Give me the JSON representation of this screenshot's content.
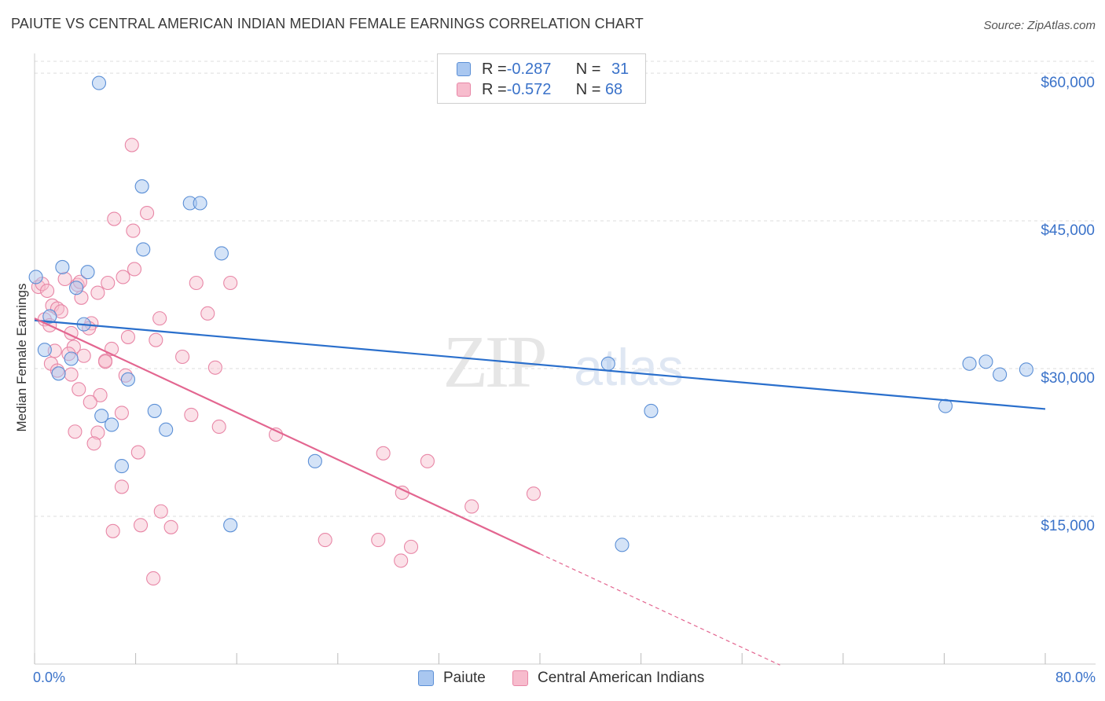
{
  "title": "PAIUTE VS CENTRAL AMERICAN INDIAN MEDIAN FEMALE EARNINGS CORRELATION CHART",
  "source": "Source: ZipAtlas.com",
  "watermark": {
    "zip": "ZIP",
    "atlas": "atlas"
  },
  "legend": {
    "paiute": {
      "r_label": "R = ",
      "r_value": "-0.287",
      "n_label": "N = ",
      "n_value": "31"
    },
    "central": {
      "r_label": "R = ",
      "r_value": "-0.572",
      "n_label": "N = ",
      "n_value": "68"
    }
  },
  "bottom_legend": {
    "paiute": "Paiute",
    "central": "Central American Indians"
  },
  "x_axis": {
    "min_label": "0.0%",
    "max_label": "80.0%"
  },
  "y_axis": {
    "title": "Median Female Earnings"
  },
  "colors": {
    "paiute_fill": "#a9c7f0",
    "paiute_stroke": "#5b8fd6",
    "paiute_line": "#2a6fcc",
    "central_fill": "#f7bccd",
    "central_stroke": "#e886a6",
    "central_line": "#e36690",
    "axis_text": "#3a72c9",
    "grid": "#dddddd"
  },
  "chart_data": {
    "type": "scatter",
    "title": "PAIUTE VS CENTRAL AMERICAN INDIAN MEDIAN FEMALE EARNINGS CORRELATION CHART",
    "xlabel": "",
    "ylabel": "Median Female Earnings",
    "xlim": [
      0,
      80
    ],
    "ylim": [
      0,
      62000
    ],
    "y_ticks": [
      {
        "value": 15000,
        "label": "$15,000"
      },
      {
        "value": 30000,
        "label": "$30,000"
      },
      {
        "value": 45000,
        "label": "$45,000"
      },
      {
        "value": 60000,
        "label": "$60,000"
      }
    ],
    "x_ticks": [
      0,
      8,
      16,
      24,
      32,
      40,
      48,
      56,
      64,
      72,
      80
    ],
    "series": [
      {
        "name": "Paiute",
        "points": [
          [
            5.1,
            59000
          ],
          [
            8.5,
            48500
          ],
          [
            12.3,
            46800
          ],
          [
            13.1,
            46800
          ],
          [
            8.6,
            42100
          ],
          [
            14.8,
            41700
          ],
          [
            2.2,
            40300
          ],
          [
            4.2,
            39800
          ],
          [
            0.1,
            39300
          ],
          [
            3.3,
            38200
          ],
          [
            1.2,
            35300
          ],
          [
            3.9,
            34500
          ],
          [
            0.8,
            31900
          ],
          [
            2.9,
            31000
          ],
          [
            1.9,
            29500
          ],
          [
            7.4,
            28900
          ],
          [
            9.5,
            25700
          ],
          [
            5.3,
            25200
          ],
          [
            6.1,
            24300
          ],
          [
            10.4,
            23800
          ],
          [
            6.9,
            20100
          ],
          [
            22.2,
            20600
          ],
          [
            15.5,
            14100
          ],
          [
            45.4,
            30500
          ],
          [
            48.8,
            25700
          ],
          [
            74.0,
            30500
          ],
          [
            75.3,
            30700
          ],
          [
            76.4,
            29400
          ],
          [
            78.5,
            29900
          ],
          [
            72.1,
            26200
          ],
          [
            46.5,
            12100
          ]
        ],
        "trend": {
          "x": [
            0,
            80
          ],
          "y": [
            34900,
            25900
          ]
        }
      },
      {
        "name": "Central American Indians",
        "points": [
          [
            0.3,
            38300
          ],
          [
            7.7,
            52700
          ],
          [
            6.3,
            45200
          ],
          [
            8.9,
            45800
          ],
          [
            7.8,
            44000
          ],
          [
            7.0,
            39300
          ],
          [
            7.9,
            40100
          ],
          [
            2.4,
            39100
          ],
          [
            5.8,
            38700
          ],
          [
            12.8,
            38700
          ],
          [
            15.5,
            38700
          ],
          [
            3.4,
            38500
          ],
          [
            5.0,
            37700
          ],
          [
            3.7,
            37200
          ],
          [
            1.4,
            36400
          ],
          [
            1.8,
            36100
          ],
          [
            2.1,
            35800
          ],
          [
            13.7,
            35600
          ],
          [
            9.9,
            35100
          ],
          [
            0.8,
            35000
          ],
          [
            1.2,
            34400
          ],
          [
            4.5,
            34600
          ],
          [
            4.3,
            34100
          ],
          [
            2.9,
            33600
          ],
          [
            7.4,
            33200
          ],
          [
            3.1,
            32200
          ],
          [
            1.6,
            31800
          ],
          [
            6.1,
            32000
          ],
          [
            2.7,
            31500
          ],
          [
            3.9,
            31300
          ],
          [
            11.7,
            31200
          ],
          [
            5.6,
            30800
          ],
          [
            1.3,
            30500
          ],
          [
            5.6,
            30700
          ],
          [
            1.8,
            29800
          ],
          [
            2.9,
            29400
          ],
          [
            7.2,
            29300
          ],
          [
            3.5,
            27900
          ],
          [
            5.2,
            27300
          ],
          [
            4.4,
            26600
          ],
          [
            6.9,
            25500
          ],
          [
            12.4,
            25300
          ],
          [
            14.6,
            24100
          ],
          [
            3.2,
            23600
          ],
          [
            5.0,
            23500
          ],
          [
            19.1,
            23300
          ],
          [
            4.7,
            22400
          ],
          [
            8.2,
            21500
          ],
          [
            27.6,
            21400
          ],
          [
            31.1,
            20600
          ],
          [
            6.9,
            18000
          ],
          [
            29.1,
            17400
          ],
          [
            39.5,
            17300
          ],
          [
            34.6,
            16000
          ],
          [
            10.0,
            15500
          ],
          [
            8.4,
            14100
          ],
          [
            10.8,
            13900
          ],
          [
            6.2,
            13500
          ],
          [
            23.0,
            12600
          ],
          [
            27.2,
            12600
          ],
          [
            29.8,
            11900
          ],
          [
            29.0,
            10500
          ],
          [
            9.4,
            8700
          ],
          [
            0.6,
            38600
          ],
          [
            1.0,
            37900
          ],
          [
            9.6,
            32900
          ],
          [
            14.3,
            30100
          ],
          [
            3.6,
            38800
          ]
        ],
        "trend": {
          "x": [
            0,
            40
          ],
          "y": [
            35100,
            11200
          ]
        },
        "trend_dashed": {
          "x": [
            40,
            59
          ],
          "y": [
            11200,
            -100
          ]
        }
      }
    ]
  }
}
